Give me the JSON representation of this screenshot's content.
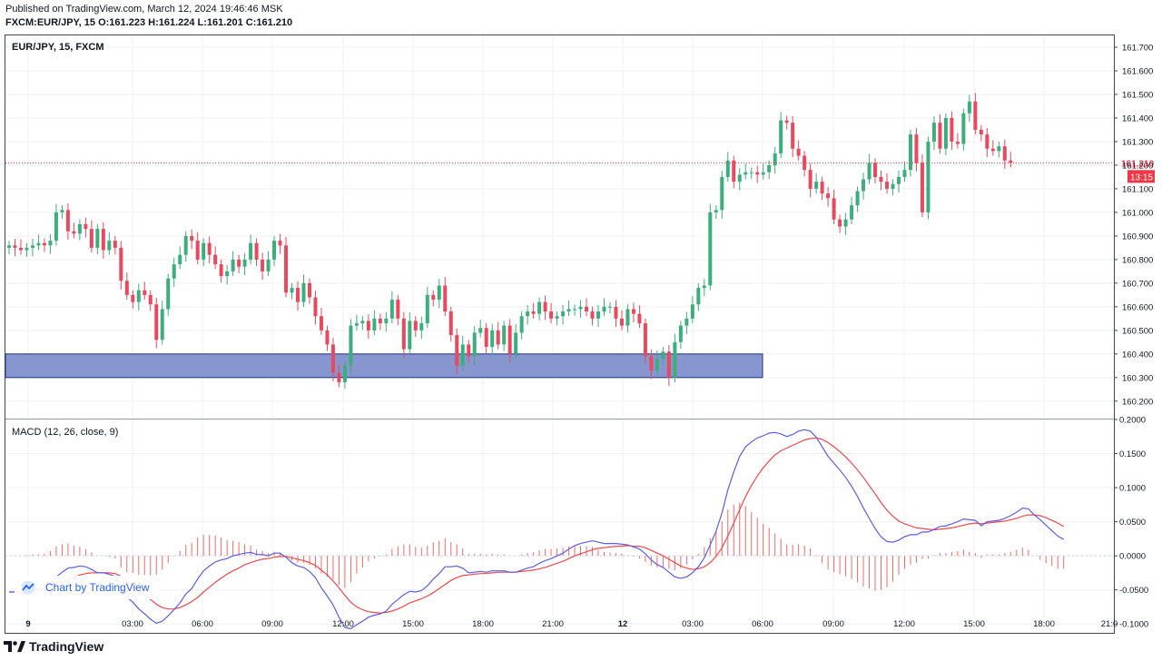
{
  "header": {
    "published": "Published on TradingView.com, March 12, 2024 19:46:46 MSK",
    "ohlc": "FXCM:EUR/JPY, 15 O:161.223 H:161.224 L:161.201 C:161.210"
  },
  "price_pane": {
    "title": "EUR/JPY, 15, FXCM"
  },
  "macd_pane": {
    "title": "MACD (12, 26, close, 9)"
  },
  "watermark": "Chart by TradingView",
  "footer": {
    "brand": "TradingView"
  },
  "colors": {
    "up": "#3cae7d",
    "down": "#e8495e",
    "zone": "#8896cf",
    "macd": "#5b5fe8",
    "signal": "#f04949",
    "hist": "#f06a6a",
    "lastprice": "#f23645"
  },
  "chart_data": [
    {
      "type": "candlestick",
      "symbol": "EUR/JPY",
      "interval": "15",
      "last_price": 161.21,
      "countdown": "13:15",
      "ylim": [
        160.13,
        161.75
      ],
      "y_ticks": [
        "161.700",
        "161.600",
        "161.500",
        "161.400",
        "161.300",
        "161.200",
        "161.100",
        "161.000",
        "160.900",
        "160.800",
        "160.700",
        "160.600",
        "160.500",
        "160.400",
        "160.300",
        "160.200"
      ],
      "x_ticks": [
        "9",
        "03:00",
        "06:00",
        "09:00",
        "12:00",
        "15:00",
        "18:00",
        "21:00",
        "12",
        "03:00",
        "06:00",
        "09:00",
        "12:00",
        "15:00",
        "18:00",
        "21:0"
      ],
      "zone": {
        "low": 160.3,
        "high": 160.4,
        "from": "9",
        "to": "06:00"
      },
      "close": [
        160.86,
        160.85,
        160.84,
        160.85,
        160.86,
        160.87,
        160.86,
        160.88,
        161.0,
        161.01,
        160.92,
        160.91,
        160.95,
        160.93,
        160.85,
        160.93,
        160.84,
        160.88,
        160.85,
        160.71,
        160.65,
        160.62,
        160.67,
        160.65,
        160.61,
        160.46,
        160.59,
        160.72,
        160.78,
        160.82,
        160.9,
        160.88,
        160.8,
        160.87,
        160.82,
        160.78,
        160.73,
        160.75,
        160.8,
        160.77,
        160.8,
        160.87,
        160.8,
        160.75,
        160.8,
        160.88,
        160.86,
        160.66,
        160.68,
        160.62,
        160.7,
        160.64,
        160.56,
        160.5,
        160.44,
        160.32,
        160.28,
        160.35,
        160.52,
        160.53,
        160.54,
        160.5,
        160.55,
        160.53,
        160.55,
        160.63,
        160.55,
        160.42,
        160.54,
        160.5,
        160.53,
        160.65,
        160.63,
        160.69,
        160.58,
        160.48,
        160.35,
        160.44,
        160.39,
        160.49,
        160.51,
        160.43,
        160.5,
        160.44,
        160.52,
        160.4,
        160.49,
        160.56,
        160.58,
        160.57,
        160.62,
        160.58,
        160.55,
        160.56,
        160.58,
        160.59,
        160.59,
        160.6,
        160.58,
        160.55,
        160.58,
        160.6,
        160.6,
        160.55,
        160.52,
        160.59,
        160.57,
        160.53,
        160.39,
        160.33,
        160.38,
        160.41,
        160.3,
        160.45,
        160.52,
        160.55,
        160.61,
        160.68,
        160.69,
        161.0,
        161.01,
        161.15,
        161.22,
        161.13,
        161.16,
        161.17,
        161.17,
        161.16,
        161.17,
        161.2,
        161.25,
        161.39,
        161.38,
        161.27,
        161.24,
        161.18,
        161.1,
        161.13,
        161.08,
        161.06,
        160.97,
        160.94,
        160.97,
        161.03,
        161.09,
        161.14,
        161.21,
        161.15,
        161.13,
        161.1,
        161.12,
        161.15,
        161.18,
        161.33,
        161.21,
        161.0,
        161.3,
        161.38,
        161.27,
        161.4,
        161.3,
        161.29,
        161.42,
        161.47,
        161.35,
        161.33,
        161.27,
        161.26,
        161.28,
        161.22,
        161.21
      ],
      "macd": [
        -0.053,
        -0.053,
        -0.053,
        -0.052,
        -0.05,
        -0.049,
        -0.047,
        -0.041,
        -0.031,
        -0.024,
        -0.018,
        -0.017,
        -0.015,
        -0.016,
        -0.02,
        -0.025,
        -0.025,
        -0.027,
        -0.03,
        -0.047,
        -0.061,
        -0.068,
        -0.078,
        -0.085,
        -0.093,
        -0.099,
        -0.096,
        -0.088,
        -0.079,
        -0.069,
        -0.056,
        -0.048,
        -0.034,
        -0.022,
        -0.015,
        -0.009,
        -0.006,
        -0.004,
        0.0,
        0.002,
        0.004,
        0.005,
        0.002,
        0.002,
        0.0,
        0.004,
        0.004,
        -0.002,
        -0.01,
        -0.015,
        -0.017,
        -0.023,
        -0.032,
        -0.047,
        -0.059,
        -0.072,
        -0.09,
        -0.105,
        -0.107,
        -0.101,
        -0.096,
        -0.09,
        -0.087,
        -0.085,
        -0.081,
        -0.071,
        -0.064,
        -0.057,
        -0.052,
        -0.053,
        -0.051,
        -0.044,
        -0.034,
        -0.026,
        -0.016,
        -0.016,
        -0.015,
        -0.018,
        -0.025,
        -0.024,
        -0.023,
        -0.024,
        -0.022,
        -0.022,
        -0.022,
        -0.024,
        -0.024,
        -0.021,
        -0.018,
        -0.016,
        -0.011,
        -0.007,
        -0.004,
        0.0,
        0.004,
        0.01,
        0.015,
        0.018,
        0.02,
        0.022,
        0.02,
        0.018,
        0.018,
        0.018,
        0.017,
        0.016,
        0.013,
        0.01,
        0.003,
        -0.006,
        -0.013,
        -0.017,
        -0.024,
        -0.031,
        -0.033,
        -0.031,
        -0.025,
        -0.016,
        -0.003,
        0.016,
        0.036,
        0.063,
        0.097,
        0.123,
        0.146,
        0.16,
        0.167,
        0.173,
        0.176,
        0.18,
        0.181,
        0.179,
        0.175,
        0.178,
        0.183,
        0.185,
        0.183,
        0.174,
        0.16,
        0.146,
        0.136,
        0.126,
        0.115,
        0.102,
        0.087,
        0.07,
        0.055,
        0.04,
        0.028,
        0.021,
        0.02,
        0.023,
        0.028,
        0.031,
        0.031,
        0.035,
        0.035,
        0.039,
        0.043,
        0.044,
        0.047,
        0.05,
        0.054,
        0.053,
        0.052,
        0.044,
        0.05,
        0.051,
        0.052,
        0.055,
        0.059,
        0.064,
        0.07,
        0.069,
        0.06,
        0.053,
        0.045,
        0.037,
        0.029,
        0.024
      ],
      "signal": [
        -0.053,
        -0.053,
        -0.053,
        -0.053,
        -0.052,
        -0.051,
        -0.05,
        -0.048,
        -0.045,
        -0.041,
        -0.036,
        -0.032,
        -0.028,
        -0.026,
        -0.025,
        -0.025,
        -0.025,
        -0.025,
        -0.026,
        -0.03,
        -0.037,
        -0.043,
        -0.05,
        -0.057,
        -0.064,
        -0.071,
        -0.076,
        -0.078,
        -0.078,
        -0.076,
        -0.072,
        -0.067,
        -0.061,
        -0.053,
        -0.046,
        -0.039,
        -0.033,
        -0.027,
        -0.022,
        -0.018,
        -0.013,
        -0.01,
        -0.007,
        -0.005,
        -0.004,
        -0.002,
        -0.001,
        -0.001,
        -0.003,
        -0.005,
        -0.007,
        -0.01,
        -0.014,
        -0.021,
        -0.028,
        -0.037,
        -0.047,
        -0.058,
        -0.068,
        -0.075,
        -0.079,
        -0.082,
        -0.083,
        -0.084,
        -0.083,
        -0.081,
        -0.078,
        -0.074,
        -0.069,
        -0.066,
        -0.063,
        -0.059,
        -0.054,
        -0.048,
        -0.042,
        -0.036,
        -0.032,
        -0.029,
        -0.028,
        -0.027,
        -0.026,
        -0.026,
        -0.025,
        -0.024,
        -0.024,
        -0.024,
        -0.024,
        -0.023,
        -0.022,
        -0.021,
        -0.019,
        -0.017,
        -0.014,
        -0.011,
        -0.008,
        -0.004,
        0.0,
        0.003,
        0.006,
        0.009,
        0.011,
        0.012,
        0.013,
        0.014,
        0.014,
        0.015,
        0.014,
        0.014,
        0.012,
        0.008,
        0.004,
        0.0,
        -0.005,
        -0.01,
        -0.015,
        -0.018,
        -0.02,
        -0.019,
        -0.016,
        -0.01,
        -0.001,
        0.012,
        0.029,
        0.048,
        0.068,
        0.087,
        0.103,
        0.117,
        0.129,
        0.139,
        0.148,
        0.154,
        0.158,
        0.162,
        0.166,
        0.17,
        0.172,
        0.173,
        0.171,
        0.166,
        0.16,
        0.153,
        0.145,
        0.136,
        0.126,
        0.115,
        0.103,
        0.091,
        0.078,
        0.067,
        0.058,
        0.051,
        0.047,
        0.044,
        0.041,
        0.04,
        0.039,
        0.038,
        0.039,
        0.04,
        0.041,
        0.043,
        0.045,
        0.047,
        0.048,
        0.047,
        0.048,
        0.049,
        0.05,
        0.051,
        0.053,
        0.055,
        0.058,
        0.06,
        0.06,
        0.059,
        0.056,
        0.052,
        0.048,
        0.043
      ]
    }
  ],
  "macd_axis": {
    "ylim": [
      -0.113,
      0.2
    ],
    "y_ticks": [
      "0.2000",
      "0.1500",
      "0.1000",
      "0.0500",
      "0.0000",
      "-0.0500",
      "-0.1000"
    ]
  }
}
